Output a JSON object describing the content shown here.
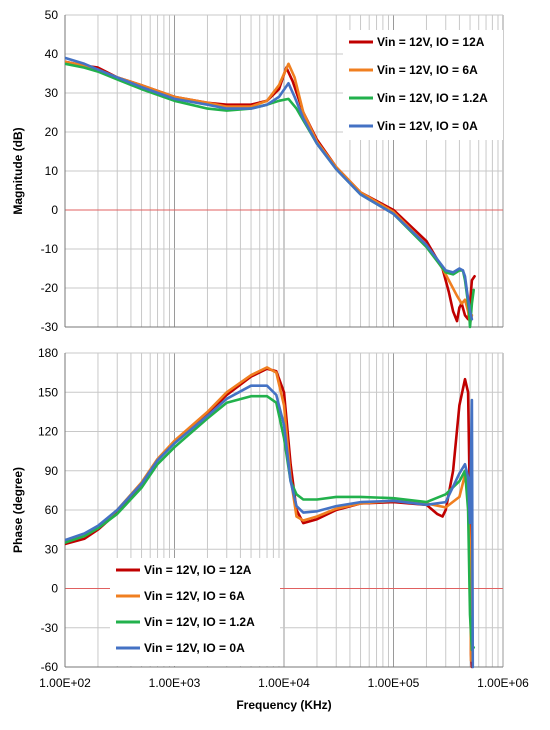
{
  "chart_data": [
    {
      "type": "line",
      "ylabel": "Magnitude (dB)",
      "xlabel": "",
      "x_scale": "log",
      "xlim": [
        100,
        1000000
      ],
      "ylim": [
        -30,
        50
      ],
      "y_ticks": [
        "-30",
        "-20",
        "-10",
        "0",
        "10",
        "20",
        "30",
        "40",
        "50"
      ],
      "x_ticks": [],
      "grid": true,
      "legend_position": "top-right",
      "zero_line_color": "#e06060",
      "series": [
        {
          "name": "Vin = 12V, IO = 12A",
          "color": "#c00000",
          "x": [
            100,
            150,
            200,
            300,
            500,
            1000,
            2000,
            3000,
            5000,
            7000,
            9000,
            10500,
            12000,
            15000,
            20000,
            30000,
            50000,
            100000,
            200000,
            280000,
            320000,
            350000,
            380000,
            400000,
            420000,
            450000,
            480000,
            500000,
            520000,
            550000
          ],
          "y": [
            38,
            37,
            36.5,
            34,
            32,
            29,
            27.5,
            27,
            27,
            28,
            31,
            36.5,
            33,
            25,
            18,
            11,
            4.5,
            0,
            -8,
            -15,
            -21,
            -26,
            -28.5,
            -25,
            -24,
            -27,
            -28,
            -24,
            -18,
            -17
          ]
        },
        {
          "name": "Vin = 12V, IO = 6A",
          "color": "#f07f20",
          "x": [
            100,
            150,
            200,
            300,
            500,
            1000,
            2000,
            3000,
            5000,
            7000,
            9000,
            11000,
            12500,
            15000,
            20000,
            30000,
            50000,
            100000,
            200000,
            280000,
            320000,
            380000,
            420000,
            450000,
            480000,
            500000,
            520000
          ],
          "y": [
            38,
            37,
            36,
            34,
            32,
            29,
            27.5,
            26.5,
            26.5,
            28,
            32,
            37.5,
            34,
            25,
            17.5,
            11,
            4.5,
            -0.5,
            -9,
            -15,
            -18,
            -22,
            -24,
            -23,
            -26,
            -29,
            -27
          ]
        },
        {
          "name": "Vin = 12V, IO = 1.2A",
          "color": "#22b14c",
          "x": [
            100,
            150,
            200,
            300,
            500,
            1000,
            2000,
            3000,
            5000,
            7000,
            9000,
            11000,
            13000,
            15000,
            20000,
            30000,
            50000,
            100000,
            200000,
            300000,
            350000,
            400000,
            430000,
            450000,
            470000,
            490000,
            500000,
            520000,
            540000
          ],
          "y": [
            37.5,
            36.5,
            35.5,
            33.5,
            31,
            28,
            26,
            25.5,
            26,
            27,
            28,
            28.5,
            26,
            23,
            17,
            10.5,
            4,
            -1,
            -9.5,
            -16,
            -16.5,
            -15.5,
            -15.5,
            -18,
            -22,
            -26,
            -30,
            -24,
            -20.5
          ]
        },
        {
          "name": "Vin = 12V, IO = 0A",
          "color": "#4472c4",
          "x": [
            100,
            150,
            200,
            300,
            500,
            1000,
            2000,
            3000,
            5000,
            7000,
            9000,
            11000,
            12500,
            15000,
            20000,
            30000,
            50000,
            100000,
            200000,
            300000,
            350000,
            400000,
            430000,
            450000,
            470000,
            500000,
            520000
          ],
          "y": [
            39,
            37.5,
            36,
            34,
            31.5,
            28.5,
            27,
            26,
            26,
            27,
            29,
            32.5,
            29,
            23.5,
            17,
            10.5,
            4,
            -1,
            -9,
            -15.5,
            -16,
            -15,
            -15.5,
            -17,
            -21,
            -26,
            -28
          ]
        }
      ]
    },
    {
      "type": "line",
      "ylabel": "Phase (degree)",
      "xlabel": "Frequency (KHz)",
      "x_scale": "log",
      "xlim": [
        100,
        1000000
      ],
      "ylim": [
        -60,
        180
      ],
      "y_ticks": [
        "-60",
        "-30",
        "0",
        "30",
        "60",
        "90",
        "120",
        "150",
        "180"
      ],
      "x_ticks": [
        "1.00E+02",
        "1.00E+03",
        "1.00E+04",
        "1.00E+05",
        "1.00E+06"
      ],
      "grid": true,
      "legend_position": "bottom-left",
      "zero_line_color": "#e06060",
      "series": [
        {
          "name": "Vin = 12V, IO = 12A",
          "color": "#c00000",
          "x": [
            100,
            150,
            200,
            300,
            500,
            700,
            1000,
            2000,
            3000,
            5000,
            7000,
            8500,
            10000,
            11500,
            13000,
            15000,
            20000,
            30000,
            50000,
            100000,
            200000,
            250000,
            280000,
            300000,
            350000,
            400000,
            450000,
            480000,
            500000,
            510000,
            520000
          ],
          "y": [
            34,
            38,
            45,
            58,
            80,
            98,
            112,
            133,
            148,
            162,
            168,
            166,
            150,
            95,
            60,
            50,
            53,
            60,
            65,
            66,
            64,
            57,
            55,
            60,
            90,
            140,
            160,
            150,
            60,
            -50,
            -60
          ]
        },
        {
          "name": "Vin = 12V, IO = 6A",
          "color": "#f07f20",
          "x": [
            100,
            150,
            200,
            300,
            500,
            700,
            1000,
            2000,
            3000,
            5000,
            7000,
            8500,
            10000,
            11500,
            13000,
            15000,
            20000,
            30000,
            50000,
            100000,
            200000,
            300000,
            400000,
            450000,
            480000,
            500000,
            510000
          ],
          "y": [
            36,
            40,
            47,
            60,
            81,
            99,
            113,
            135,
            150,
            163,
            169,
            165,
            140,
            85,
            55,
            52,
            55,
            61,
            65,
            67,
            65,
            62,
            70,
            87,
            75,
            30,
            -55
          ]
        },
        {
          "name": "Vin = 12V, IO = 1.2A",
          "color": "#22b14c",
          "x": [
            100,
            150,
            200,
            300,
            500,
            700,
            1000,
            2000,
            3000,
            5000,
            7000,
            8500,
            10000,
            11500,
            13000,
            15000,
            20000,
            30000,
            50000,
            100000,
            200000,
            300000,
            400000,
            450000,
            480000,
            500000,
            520000,
            540000
          ],
          "y": [
            35,
            40,
            46,
            57,
            77,
            95,
            108,
            130,
            142,
            147,
            147,
            142,
            115,
            82,
            72,
            68,
            68,
            70,
            70,
            69,
            66,
            72,
            82,
            90,
            60,
            -20,
            -47,
            -45
          ]
        },
        {
          "name": "Vin = 12V, IO = 0A",
          "color": "#4472c4",
          "x": [
            100,
            150,
            200,
            300,
            500,
            700,
            1000,
            2000,
            3000,
            5000,
            7000,
            8500,
            10000,
            11500,
            13000,
            15000,
            20000,
            30000,
            50000,
            100000,
            200000,
            300000,
            400000,
            450000,
            480000,
            500000,
            520000,
            530000
          ],
          "y": [
            37,
            42,
            48,
            60,
            80,
            98,
            111,
            132,
            145,
            155,
            155,
            148,
            125,
            82,
            63,
            58,
            59,
            63,
            66,
            67,
            64,
            66,
            88,
            95,
            85,
            50,
            144,
            -60
          ]
        }
      ]
    }
  ]
}
